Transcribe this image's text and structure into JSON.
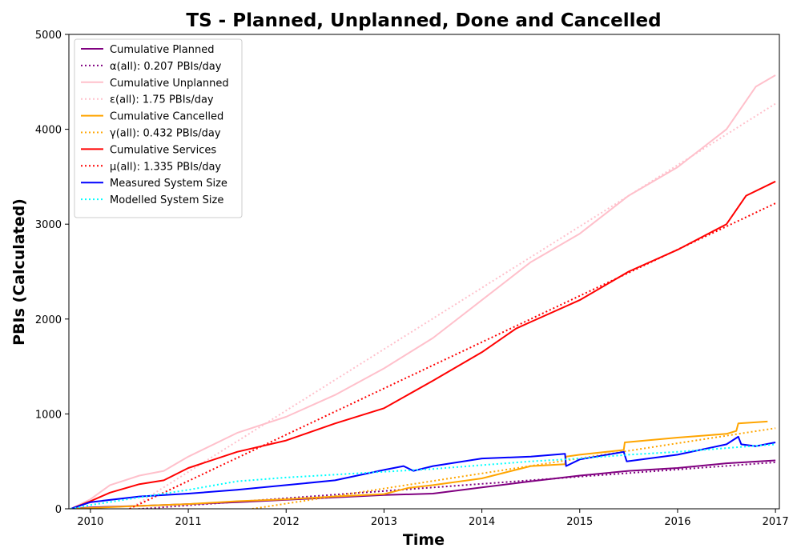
{
  "chart_data": {
    "type": "line",
    "title": "TS - Planned, Unplanned, Done  and Cancelled",
    "xlabel": "Time",
    "ylabel": "PBIs (Calculated)",
    "xlim": [
      2009.78,
      2017.04
    ],
    "ylim": [
      0,
      5000
    ],
    "xticks": [
      "2010",
      "2011",
      "2012",
      "2013",
      "2014",
      "2015",
      "2016",
      "2017"
    ],
    "yticks": [
      "0",
      "1000",
      "2000",
      "3000",
      "4000",
      "5000"
    ],
    "grid": false,
    "legend_position": "top-left",
    "series": [
      {
        "name": "Cumulative Planned",
        "color": "#800080",
        "style": "solid",
        "x": [
          2009.8,
          2010.0,
          2010.5,
          2011.0,
          2011.5,
          2012.0,
          2012.5,
          2013.0,
          2013.5,
          2014.0,
          2014.5,
          2015.0,
          2015.5,
          2016.0,
          2016.5,
          2017.0
        ],
        "y": [
          0,
          15,
          30,
          50,
          70,
          95,
          120,
          145,
          160,
          225,
          290,
          350,
          400,
          430,
          480,
          510
        ]
      },
      {
        "name": "α(all): 0.207 PBIs/day",
        "color": "#800080",
        "style": "dotted",
        "x": [
          2010.0,
          2017.0
        ],
        "y": [
          -40,
          490
        ]
      },
      {
        "name": "Cumulative Unplanned",
        "color": "#ffc0cb",
        "style": "solid",
        "x": [
          2009.8,
          2010.0,
          2010.2,
          2010.5,
          2010.75,
          2011.0,
          2011.5,
          2012.0,
          2012.5,
          2013.0,
          2013.5,
          2014.0,
          2014.5,
          2015.0,
          2015.5,
          2016.0,
          2016.5,
          2016.8,
          2017.0
        ],
        "y": [
          0,
          100,
          250,
          350,
          400,
          550,
          800,
          970,
          1200,
          1480,
          1800,
          2200,
          2600,
          2900,
          3300,
          3600,
          4000,
          4450,
          4570
        ]
      },
      {
        "name": "ε(all): 1.75 PBIs/day",
        "color": "#ffc0cb",
        "style": "dotted",
        "x": [
          2010.4,
          2017.0
        ],
        "y": [
          0,
          4270
        ]
      },
      {
        "name": "Cumulative Cancelled",
        "color": "#ffa500",
        "style": "solid",
        "x": [
          2009.8,
          2010.5,
          2011.0,
          2011.5,
          2012.0,
          2012.5,
          2013.0,
          2013.25,
          2013.5,
          2014.0,
          2014.5,
          2014.85,
          2014.86,
          2015.0,
          2015.45,
          2015.46,
          2016.0,
          2016.5,
          2016.6,
          2016.62,
          2016.92
        ],
        "y": [
          0,
          30,
          50,
          80,
          100,
          130,
          155,
          220,
          250,
          320,
          450,
          470,
          550,
          570,
          620,
          700,
          750,
          790,
          820,
          900,
          920
        ]
      },
      {
        "name": "γ(all): 0.432 PBIs/day",
        "color": "#ffa500",
        "style": "dotted",
        "x": [
          2010.4,
          2017.0
        ],
        "y": [
          -200,
          850
        ]
      },
      {
        "name": "Cumulative Services",
        "color": "#ff0000",
        "style": "solid",
        "x": [
          2009.8,
          2010.0,
          2010.2,
          2010.5,
          2010.75,
          2011.0,
          2011.5,
          2012.0,
          2012.5,
          2013.0,
          2013.5,
          2014.0,
          2014.35,
          2014.5,
          2015.0,
          2015.5,
          2016.0,
          2016.5,
          2016.6,
          2016.7,
          2017.0
        ],
        "y": [
          0,
          80,
          170,
          260,
          300,
          430,
          600,
          720,
          900,
          1060,
          1350,
          1650,
          1900,
          1970,
          2200,
          2500,
          2730,
          3000,
          3150,
          3300,
          3450
        ]
      },
      {
        "name": "μ(all): 1.335 PBIs/day",
        "color": "#ff0000",
        "style": "dotted",
        "x": [
          2010.4,
          2017.0
        ],
        "y": [
          0,
          3220
        ]
      },
      {
        "name": "Measured System Size",
        "color": "#0000ff",
        "style": "solid",
        "x": [
          2009.8,
          2010.0,
          2010.5,
          2011.0,
          2011.5,
          2012.0,
          2012.5,
          2013.0,
          2013.2,
          2013.3,
          2013.5,
          2014.0,
          2014.5,
          2014.85,
          2014.86,
          2015.0,
          2015.45,
          2015.48,
          2016.0,
          2016.5,
          2016.62,
          2016.65,
          2016.8,
          2017.0
        ],
        "y": [
          0,
          70,
          130,
          160,
          200,
          250,
          300,
          410,
          450,
          400,
          450,
          530,
          550,
          580,
          450,
          520,
          600,
          500,
          570,
          680,
          760,
          680,
          660,
          700
        ]
      },
      {
        "name": "Modelled System Size",
        "color": "#00ffff",
        "style": "dotted",
        "x": [
          2009.8,
          2010.0,
          2010.5,
          2011.0,
          2011.5,
          2012.0,
          2012.5,
          2013.0,
          2013.5,
          2014.0,
          2014.5,
          2015.0,
          2015.5,
          2016.0,
          2016.5,
          2017.0
        ],
        "y": [
          0,
          40,
          120,
          200,
          290,
          330,
          360,
          390,
          420,
          460,
          500,
          530,
          570,
          600,
          640,
          680
        ]
      }
    ]
  }
}
